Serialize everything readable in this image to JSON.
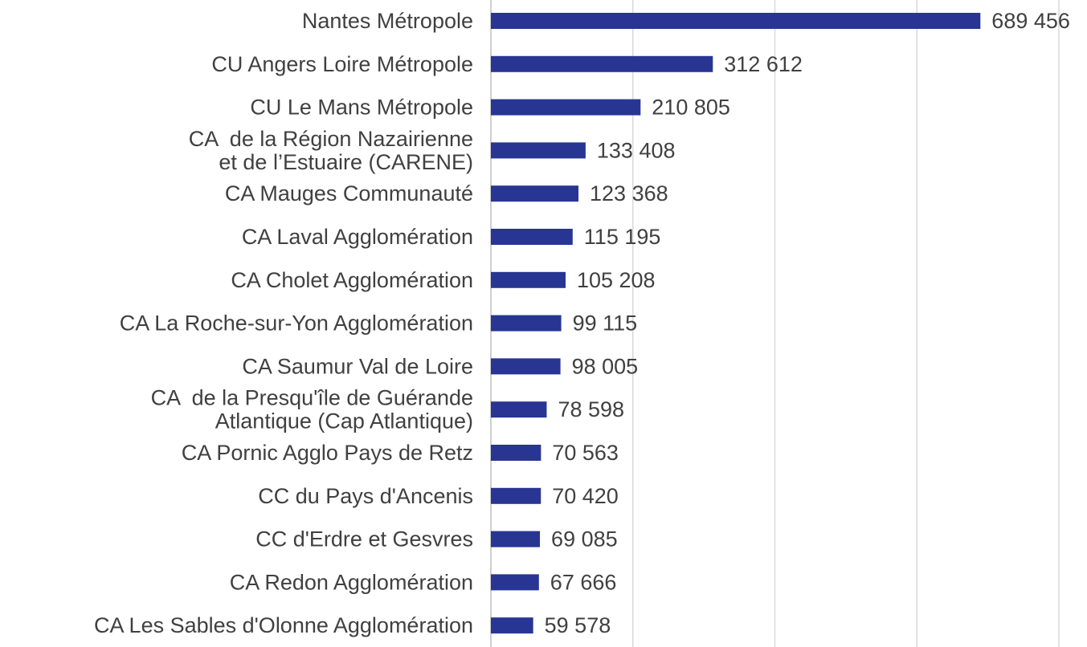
{
  "chart_data": {
    "type": "bar",
    "orientation": "horizontal",
    "bar_color": "#283593",
    "grid": true,
    "categories": [
      [
        "Nantes Métropole"
      ],
      [
        "CU Angers Loire Métropole"
      ],
      [
        "CU Le Mans Métropole"
      ],
      [
        "CA  de la Région Nazairienne",
        "et de l’Estuaire (CARENE)"
      ],
      [
        "CA Mauges Communauté"
      ],
      [
        "CA Laval Agglomération"
      ],
      [
        "CA Cholet Agglomération"
      ],
      [
        "CA La Roche-sur-Yon Agglomération"
      ],
      [
        "CA Saumur Val de Loire"
      ],
      [
        "CA  de la Presqu'île de Guérande",
        "Atlantique (Cap Atlantique)"
      ],
      [
        "CA Pornic Agglo Pays de Retz"
      ],
      [
        "CC du Pays d'Ancenis"
      ],
      [
        "CC d'Erdre et Gesvres"
      ],
      [
        "CA Redon Agglomération"
      ],
      [
        "CA Les Sables d'Olonne Agglomération"
      ]
    ],
    "values": [
      689456,
      312612,
      210805,
      133408,
      123368,
      115195,
      105208,
      99115,
      98005,
      78598,
      70563,
      70420,
      69085,
      67666,
      59578
    ],
    "value_labels": [
      "689 456",
      "312 612",
      "210 805",
      "133 408",
      "123 368",
      "115 195",
      "105 208",
      "99 115",
      "98 005",
      "78 598",
      "70 563",
      "70 420",
      "69 085",
      "67 666",
      "59 578"
    ],
    "xlim": [
      0,
      800000
    ],
    "x_gridlines": [
      0,
      200000,
      400000,
      600000,
      800000
    ]
  }
}
